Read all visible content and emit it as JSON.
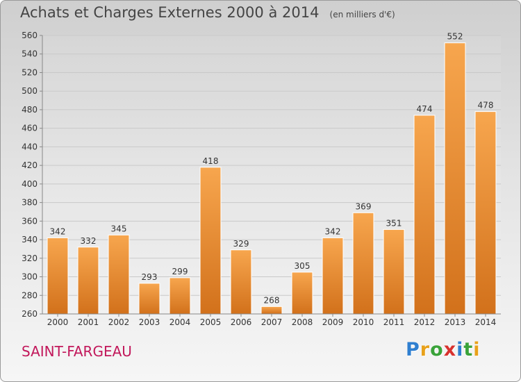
{
  "title": "Achats et Charges Externes 2000 à 2014",
  "subtitle": "(en milliers d'€)",
  "location": "SAINT-FARGEAU",
  "logo": {
    "letters": [
      "P",
      "r",
      "o",
      "x",
      "i",
      "t",
      "i"
    ],
    "colors": [
      "#2f7fd0",
      "#e8a11a",
      "#3aa33a",
      "#d8322e",
      "#2f7fd0",
      "#3aa33a",
      "#e8a11a"
    ]
  },
  "colors": {
    "bar_top": "#f7a64e",
    "bar_bottom": "#d2711b",
    "location_text": "#c2185b"
  },
  "chart_data": {
    "type": "bar",
    "title": "Achats et Charges Externes 2000 à 2014",
    "subtitle": "(en milliers d'€)",
    "categories": [
      "2000",
      "2001",
      "2002",
      "2003",
      "2004",
      "2005",
      "2006",
      "2007",
      "2008",
      "2009",
      "2010",
      "2011",
      "2012",
      "2013",
      "2014"
    ],
    "values": [
      342,
      332,
      345,
      293,
      299,
      418,
      329,
      268,
      305,
      342,
      369,
      351,
      474,
      552,
      478
    ],
    "ylim": [
      260,
      560
    ],
    "yticks": [
      260,
      280,
      300,
      320,
      340,
      360,
      380,
      400,
      420,
      440,
      460,
      480,
      500,
      520,
      540,
      560
    ],
    "grid": true,
    "data_labels": true,
    "legend": "none"
  }
}
